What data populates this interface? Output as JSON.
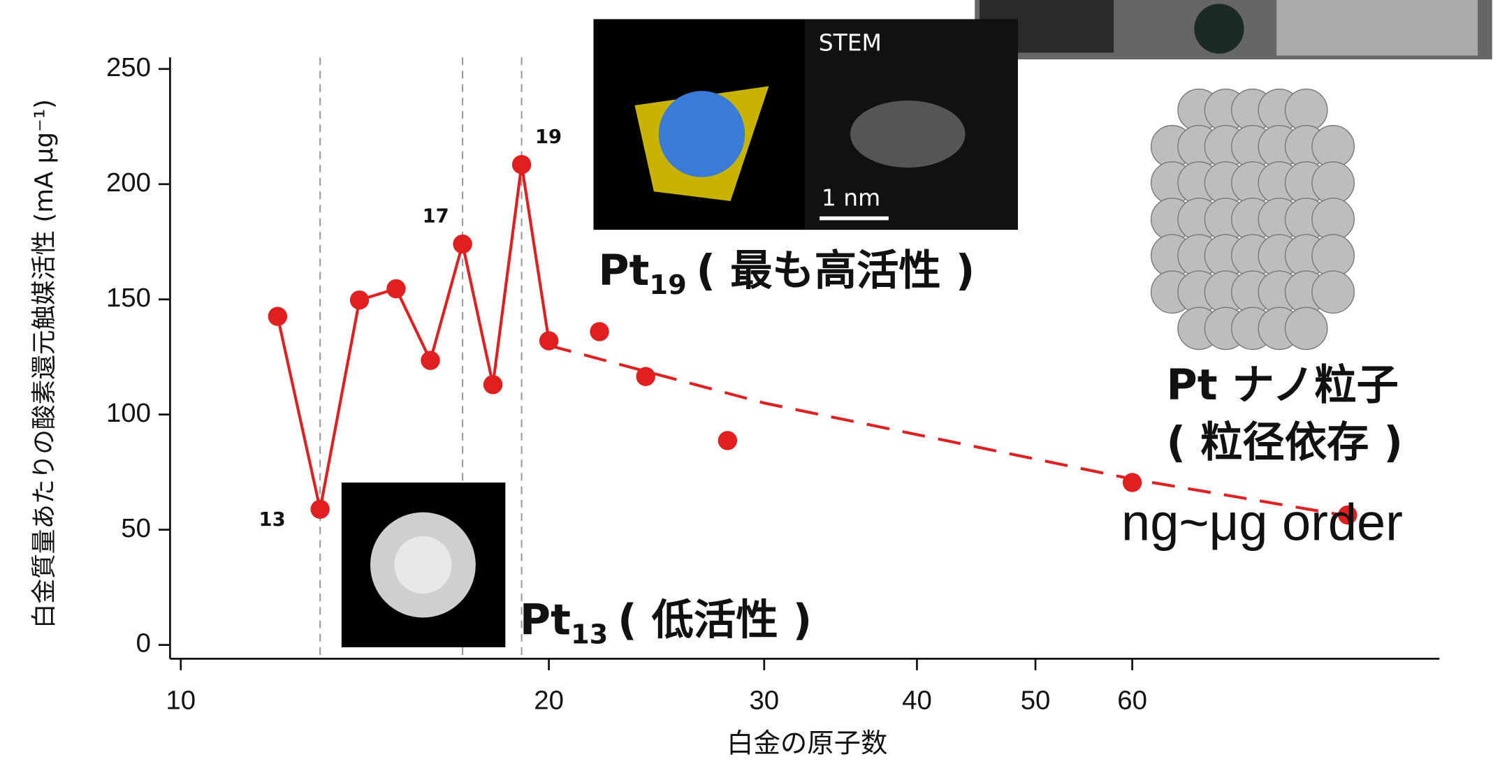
{
  "chart_data": {
    "type": "line",
    "log_x": true,
    "xlabel": "白金の原子数",
    "ylabel": "白金質量あたりの酸素還元触媒活性 (mA μg⁻¹)",
    "xlim": [
      9.8,
      107
    ],
    "ylim": [
      -6,
      255
    ],
    "xticks": [
      10,
      20,
      30,
      40,
      50,
      60
    ],
    "yticks": [
      0,
      50,
      100,
      150,
      200,
      250
    ],
    "vlines": [
      13,
      17,
      19
    ],
    "series": [
      {
        "style": "solid",
        "color": "#e02020",
        "x": [
          12,
          13,
          14,
          15,
          16,
          17,
          18,
          19,
          20
        ],
        "values": [
          142.6,
          58.9,
          149.7,
          154.6,
          123.5,
          174,
          113,
          208.5,
          132
        ]
      },
      {
        "style": "points",
        "color": "#e02020",
        "x": [
          22,
          24,
          28,
          60,
          90
        ],
        "values": [
          136,
          116.5,
          88.7,
          70.5,
          56.4
        ]
      },
      {
        "style": "dashed",
        "color": "#e02020",
        "x": [
          20,
          30,
          60,
          90
        ],
        "values": [
          130,
          105,
          72,
          56
        ]
      }
    ],
    "annotations": [
      {
        "text": "13",
        "x": 13
      },
      {
        "text": "17",
        "x": 17
      },
      {
        "text": "19",
        "x": 19
      }
    ],
    "pt19": {
      "base": "Pt",
      "sub": "19",
      "rest": "( 最も高活性 )"
    },
    "pt13": {
      "base": "Pt",
      "sub": "13",
      "rest": "( 低活性 )"
    },
    "stem": "STEM",
    "scale": "1 nm",
    "nano": [
      "Pt ナノ粒子",
      "( 粒径依存 )"
    ],
    "order": "ng~μg order"
  }
}
